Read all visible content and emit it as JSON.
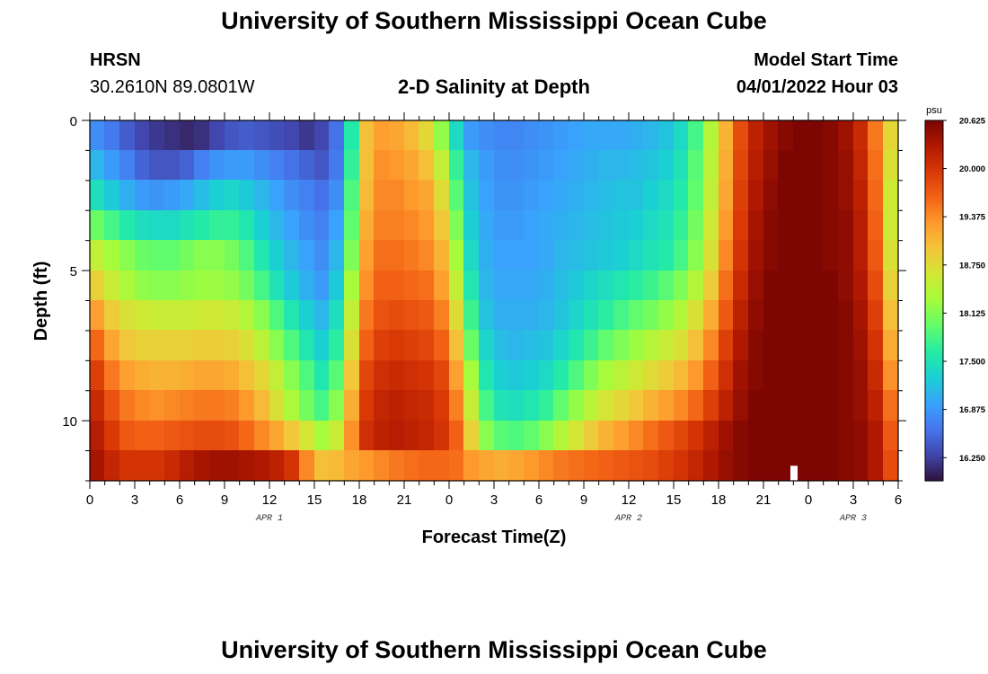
{
  "page": {
    "title": "University of Southern Mississippi Ocean Cube",
    "footer_title": "University of Southern Mississippi Ocean Cube",
    "station": "HRSN",
    "coordinates": "30.2610N  89.0801W",
    "chart_title": "2-D Salinity at Depth",
    "model_start_label": "Model Start Time",
    "model_start_value": "04/01/2022 Hour 03"
  },
  "chart_data": {
    "type": "heatmap",
    "title": "2-D Salinity at Depth",
    "xlabel": "Forecast Time(Z)",
    "ylabel": "Depth (ft)",
    "x_tick_labels": [
      "0",
      "3",
      "6",
      "9",
      "12",
      "15",
      "18",
      "21",
      "0",
      "3",
      "6",
      "9",
      "12",
      "15",
      "18",
      "21",
      "0",
      "3",
      "6"
    ],
    "date_labels": [
      {
        "label": "APR 1",
        "at_hour": 12
      },
      {
        "label": "APR 2",
        "at_hour": 36
      },
      {
        "label": "APR 3",
        "at_hour": 51
      }
    ],
    "x_range_hours": [
      0,
      54
    ],
    "y_ticks": [
      0,
      5,
      10
    ],
    "y_range_ft": [
      0,
      12
    ],
    "colorbar": {
      "unit": "psu",
      "min": 15.95,
      "max": 20.625,
      "tick_labels": [
        "20.625",
        "20.000",
        "19.375",
        "18.750",
        "18.125",
        "17.500",
        "16.875",
        "16.250"
      ],
      "tick_values": [
        20.625,
        20.0,
        19.375,
        18.75,
        18.125,
        17.5,
        16.875,
        16.25
      ],
      "colors": [
        "#30123b",
        "#4145ab",
        "#4675ed",
        "#39a2fc",
        "#1bcfd4",
        "#24eca6",
        "#61fc6c",
        "#a4fc3b",
        "#d1e834",
        "#f3c63a",
        "#fe9b2d",
        "#f36315",
        "#d93806",
        "#b11901",
        "#7a0402"
      ]
    },
    "depths_ft": [
      0,
      1,
      2,
      3,
      4,
      5,
      6,
      7,
      8,
      9,
      10,
      11
    ],
    "hours": [
      0,
      1,
      2,
      3,
      4,
      5,
      6,
      7,
      8,
      9,
      10,
      11,
      12,
      13,
      14,
      15,
      16,
      17,
      18,
      19,
      20,
      21,
      22,
      23,
      24,
      25,
      26,
      27,
      28,
      29,
      30,
      31,
      32,
      33,
      34,
      35,
      36,
      37,
      38,
      39,
      40,
      41,
      42,
      43,
      44,
      45,
      46,
      47,
      48,
      49,
      50,
      51,
      52,
      53
    ],
    "values": [
      [
        16.8,
        16.65,
        16.45,
        16.3,
        16.2,
        16.15,
        16.1,
        16.15,
        16.3,
        16.4,
        16.45,
        16.4,
        16.35,
        16.3,
        16.2,
        16.3,
        16.6,
        17.6,
        19.0,
        19.25,
        19.2,
        19.05,
        18.8,
        18.2,
        17.4,
        16.9,
        16.8,
        16.75,
        16.75,
        16.8,
        16.85,
        16.9,
        16.95,
        17.0,
        17.0,
        17.0,
        17.05,
        17.1,
        17.2,
        17.4,
        17.8,
        18.4,
        19.1,
        19.8,
        20.2,
        20.4,
        20.55,
        20.6,
        20.6,
        20.55,
        20.4,
        20.1,
        19.5,
        18.8
      ],
      [
        17.1,
        16.9,
        16.7,
        16.5,
        16.4,
        16.4,
        16.5,
        16.7,
        16.85,
        16.9,
        16.9,
        16.8,
        16.7,
        16.6,
        16.5,
        16.4,
        16.65,
        17.7,
        19.0,
        19.35,
        19.3,
        19.2,
        19.0,
        18.5,
        17.7,
        17.1,
        16.9,
        16.8,
        16.8,
        16.85,
        16.9,
        16.95,
        17.0,
        17.05,
        17.1,
        17.1,
        17.15,
        17.2,
        17.3,
        17.5,
        17.9,
        18.45,
        19.15,
        19.85,
        20.25,
        20.45,
        20.6,
        20.6,
        20.6,
        20.55,
        20.45,
        20.15,
        19.55,
        18.7
      ],
      [
        17.45,
        17.25,
        17.05,
        16.9,
        16.85,
        16.9,
        17.0,
        17.15,
        17.3,
        17.35,
        17.25,
        17.1,
        16.95,
        16.8,
        16.7,
        16.6,
        16.8,
        17.85,
        19.05,
        19.4,
        19.4,
        19.3,
        19.2,
        18.75,
        17.9,
        17.2,
        16.95,
        16.85,
        16.85,
        16.9,
        16.95,
        17.0,
        17.05,
        17.1,
        17.15,
        17.2,
        17.2,
        17.3,
        17.4,
        17.6,
        17.95,
        18.5,
        19.2,
        19.9,
        20.3,
        20.5,
        20.6,
        20.6,
        20.6,
        20.55,
        20.45,
        20.2,
        19.6,
        18.6
      ],
      [
        18.0,
        17.8,
        17.6,
        17.45,
        17.4,
        17.4,
        17.5,
        17.6,
        17.7,
        17.7,
        17.55,
        17.3,
        17.1,
        16.95,
        16.8,
        16.7,
        16.95,
        17.95,
        19.15,
        19.45,
        19.45,
        19.4,
        19.3,
        18.95,
        18.1,
        17.3,
        17.0,
        16.9,
        16.9,
        16.95,
        17.0,
        17.05,
        17.1,
        17.15,
        17.2,
        17.25,
        17.3,
        17.4,
        17.5,
        17.7,
        18.05,
        18.6,
        19.3,
        19.95,
        20.35,
        20.55,
        20.6,
        20.6,
        20.6,
        20.55,
        20.5,
        20.25,
        19.65,
        18.6
      ],
      [
        18.5,
        18.3,
        18.15,
        18.0,
        17.95,
        17.95,
        18.05,
        18.15,
        18.15,
        18.05,
        17.85,
        17.55,
        17.3,
        17.1,
        16.95,
        16.8,
        17.1,
        18.1,
        19.25,
        19.55,
        19.55,
        19.5,
        19.4,
        19.1,
        18.3,
        17.4,
        17.05,
        16.95,
        16.95,
        16.95,
        17.0,
        17.1,
        17.15,
        17.2,
        17.25,
        17.3,
        17.4,
        17.5,
        17.6,
        17.8,
        18.15,
        18.7,
        19.4,
        20.0,
        20.4,
        20.55,
        20.6,
        20.6,
        20.6,
        20.55,
        20.5,
        20.25,
        19.7,
        18.7
      ],
      [
        18.85,
        18.55,
        18.35,
        18.2,
        18.15,
        18.15,
        18.2,
        18.25,
        18.25,
        18.2,
        18.05,
        17.8,
        17.5,
        17.25,
        17.05,
        16.9,
        17.25,
        18.3,
        19.35,
        19.65,
        19.65,
        19.6,
        19.55,
        19.25,
        18.5,
        17.55,
        17.1,
        17.0,
        17.0,
        17.0,
        17.05,
        17.15,
        17.25,
        17.35,
        17.45,
        17.55,
        17.65,
        17.75,
        17.9,
        18.1,
        18.4,
        18.9,
        19.55,
        20.1,
        20.45,
        20.6,
        20.6,
        20.6,
        20.6,
        20.6,
        20.5,
        20.3,
        19.8,
        18.85
      ],
      [
        19.25,
        18.9,
        18.7,
        18.6,
        18.55,
        18.55,
        18.55,
        18.6,
        18.6,
        18.55,
        18.4,
        18.15,
        17.85,
        17.55,
        17.3,
        17.1,
        17.45,
        18.5,
        19.5,
        19.75,
        19.8,
        19.75,
        19.7,
        19.45,
        18.75,
        17.75,
        17.2,
        17.05,
        17.05,
        17.05,
        17.1,
        17.2,
        17.35,
        17.5,
        17.65,
        17.8,
        17.95,
        18.05,
        18.2,
        18.4,
        18.7,
        19.15,
        19.7,
        20.2,
        20.5,
        20.6,
        20.6,
        20.6,
        20.6,
        20.6,
        20.55,
        20.35,
        19.9,
        19.0
      ],
      [
        19.6,
        19.2,
        18.95,
        18.85,
        18.85,
        18.85,
        18.85,
        18.9,
        18.9,
        18.85,
        18.7,
        18.45,
        18.15,
        17.85,
        17.55,
        17.3,
        17.65,
        18.7,
        19.65,
        19.9,
        19.95,
        19.9,
        19.85,
        19.65,
        19.0,
        18.0,
        17.35,
        17.15,
        17.1,
        17.15,
        17.2,
        17.35,
        17.55,
        17.75,
        17.95,
        18.1,
        18.25,
        18.4,
        18.55,
        18.7,
        19.0,
        19.4,
        19.9,
        20.3,
        20.55,
        20.6,
        20.6,
        20.6,
        20.6,
        20.6,
        20.55,
        20.4,
        20.0,
        19.15
      ],
      [
        19.9,
        19.5,
        19.25,
        19.15,
        19.1,
        19.1,
        19.15,
        19.2,
        19.2,
        19.15,
        19.0,
        18.8,
        18.5,
        18.15,
        17.85,
        17.55,
        17.9,
        18.95,
        19.85,
        20.05,
        20.1,
        20.05,
        20.0,
        19.85,
        19.25,
        18.3,
        17.55,
        17.3,
        17.25,
        17.3,
        17.4,
        17.6,
        17.85,
        18.1,
        18.3,
        18.45,
        18.6,
        18.75,
        18.9,
        19.05,
        19.3,
        19.65,
        20.05,
        20.4,
        20.55,
        20.6,
        20.6,
        20.6,
        20.6,
        20.6,
        20.55,
        20.45,
        20.1,
        19.35
      ],
      [
        20.1,
        19.75,
        19.5,
        19.4,
        19.35,
        19.4,
        19.45,
        19.5,
        19.5,
        19.45,
        19.3,
        19.05,
        18.7,
        18.35,
        18.05,
        17.8,
        18.15,
        19.15,
        19.95,
        20.15,
        20.2,
        20.15,
        20.1,
        19.95,
        19.45,
        18.55,
        17.8,
        17.5,
        17.45,
        17.55,
        17.7,
        17.95,
        18.2,
        18.45,
        18.65,
        18.8,
        18.95,
        19.1,
        19.25,
        19.4,
        19.6,
        19.9,
        20.2,
        20.45,
        20.6,
        20.6,
        20.6,
        20.6,
        20.6,
        20.6,
        20.55,
        20.45,
        20.2,
        19.55
      ],
      [
        20.25,
        19.95,
        19.7,
        19.65,
        19.65,
        19.7,
        19.75,
        19.8,
        19.8,
        19.75,
        19.6,
        19.4,
        19.2,
        18.95,
        18.65,
        18.3,
        18.55,
        19.35,
        20.05,
        20.2,
        20.25,
        20.2,
        20.15,
        20.0,
        19.65,
        18.85,
        18.15,
        17.9,
        17.85,
        17.95,
        18.15,
        18.4,
        18.65,
        18.9,
        19.1,
        19.25,
        19.4,
        19.55,
        19.7,
        19.85,
        20.0,
        20.2,
        20.4,
        20.55,
        20.6,
        20.6,
        20.6,
        20.6,
        20.6,
        20.6,
        20.55,
        20.5,
        20.3,
        19.7
      ],
      [
        20.35,
        20.15,
        20.0,
        20.0,
        20.0,
        20.1,
        20.25,
        20.35,
        20.4,
        20.4,
        20.35,
        20.3,
        20.2,
        20.0,
        19.4,
        19.0,
        19.05,
        19.2,
        19.3,
        19.4,
        19.5,
        19.55,
        19.6,
        19.6,
        19.55,
        19.3,
        19.2,
        19.15,
        19.2,
        19.3,
        19.4,
        19.5,
        19.55,
        19.6,
        19.65,
        19.7,
        19.75,
        19.8,
        19.9,
        20.0,
        20.15,
        20.3,
        20.45,
        20.55,
        20.6,
        20.6,
        20.6,
        20.6,
        20.6,
        20.6,
        20.55,
        20.5,
        20.3,
        19.8
      ]
    ]
  }
}
